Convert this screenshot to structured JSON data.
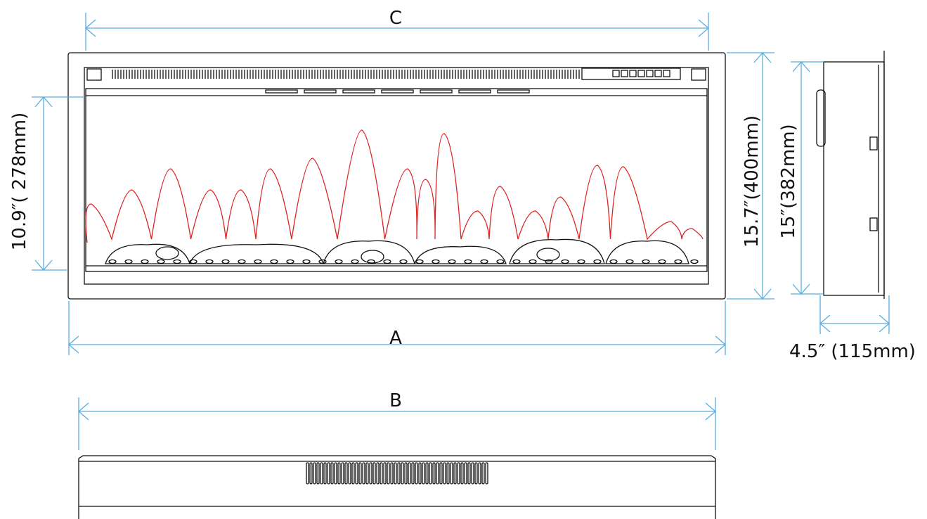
{
  "dimensions": {
    "c": "C",
    "a": "A",
    "b": "B",
    "fire_height": "10.9″( 278mm)",
    "height": "15.7″(400mm)",
    "side_height": "15″(382mm)",
    "depth": "4.5″ (115mm)"
  }
}
